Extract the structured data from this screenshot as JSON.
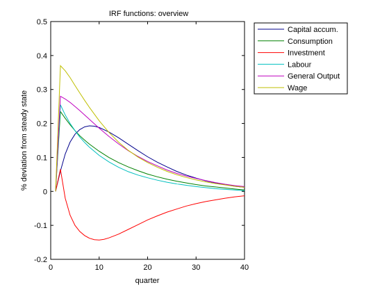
{
  "chart_data": {
    "type": "line",
    "title": "IRF functions: overview",
    "xlabel": "quarter",
    "ylabel": "% deviation from steady state",
    "xlim": [
      0,
      40
    ],
    "ylim": [
      -0.2,
      0.5
    ],
    "xticks": [
      0,
      10,
      20,
      30,
      40
    ],
    "yticks": [
      -0.2,
      -0.1,
      0,
      0.1,
      0.2,
      0.3,
      0.4,
      0.5
    ],
    "ytick_labels": [
      "-0.2",
      "-0.1",
      "0",
      "0.1",
      "0.2",
      "0.3",
      "0.4",
      "0.5"
    ],
    "grid": false,
    "legend_position": "outside-top-right",
    "series": [
      {
        "name": "Capital accum.",
        "color": "#00008b",
        "x": [
          1,
          2,
          3,
          4,
          5,
          6,
          7,
          8,
          9,
          10,
          12,
          14,
          16,
          18,
          20,
          22,
          24,
          26,
          28,
          30,
          32,
          34,
          36,
          38,
          40
        ],
        "y": [
          0,
          0.06,
          0.11,
          0.145,
          0.168,
          0.182,
          0.19,
          0.193,
          0.192,
          0.188,
          0.175,
          0.158,
          0.139,
          0.12,
          0.102,
          0.086,
          0.072,
          0.059,
          0.048,
          0.039,
          0.031,
          0.025,
          0.02,
          0.015,
          0.012
        ]
      },
      {
        "name": "Consumption",
        "color": "#008000",
        "x": [
          1,
          2,
          3,
          4,
          5,
          6,
          7,
          8,
          10,
          12,
          14,
          16,
          18,
          20,
          22,
          24,
          26,
          28,
          30,
          32,
          34,
          36,
          38,
          40
        ],
        "y": [
          0,
          0.235,
          0.215,
          0.196,
          0.179,
          0.164,
          0.151,
          0.139,
          0.118,
          0.1,
          0.085,
          0.072,
          0.061,
          0.051,
          0.043,
          0.036,
          0.03,
          0.025,
          0.02,
          0.016,
          0.013,
          0.01,
          0.007,
          0.004
        ]
      },
      {
        "name": "Investment",
        "color": "#ff0000",
        "x": [
          1,
          2,
          3,
          4,
          5,
          6,
          7,
          8,
          9,
          10,
          11,
          12,
          14,
          16,
          18,
          20,
          22,
          24,
          26,
          28,
          30,
          32,
          34,
          36,
          38,
          40
        ],
        "y": [
          0,
          0.065,
          -0.02,
          -0.07,
          -0.1,
          -0.118,
          -0.13,
          -0.138,
          -0.142,
          -0.143,
          -0.141,
          -0.137,
          -0.126,
          -0.112,
          -0.098,
          -0.084,
          -0.072,
          -0.061,
          -0.052,
          -0.043,
          -0.036,
          -0.03,
          -0.025,
          -0.02,
          -0.016,
          -0.013
        ]
      },
      {
        "name": "Labour",
        "color": "#00bfbf",
        "x": [
          1,
          2,
          3,
          4,
          5,
          6,
          7,
          8,
          10,
          12,
          14,
          16,
          18,
          20,
          22,
          24,
          26,
          28,
          30,
          32,
          34,
          36,
          38,
          40
        ],
        "y": [
          0,
          0.255,
          0.225,
          0.2,
          0.179,
          0.16,
          0.144,
          0.13,
          0.106,
          0.087,
          0.071,
          0.058,
          0.048,
          0.04,
          0.033,
          0.027,
          0.022,
          0.018,
          0.014,
          0.011,
          0.008,
          0.006,
          0.004,
          0.002
        ]
      },
      {
        "name": "General Output",
        "color": "#bf00bf",
        "x": [
          1,
          2,
          3,
          4,
          5,
          6,
          7,
          8,
          10,
          12,
          14,
          16,
          18,
          20,
          22,
          24,
          26,
          28,
          30,
          32,
          34,
          36,
          38,
          40
        ],
        "y": [
          0,
          0.28,
          0.272,
          0.262,
          0.25,
          0.238,
          0.225,
          0.212,
          0.186,
          0.162,
          0.14,
          0.12,
          0.103,
          0.088,
          0.075,
          0.063,
          0.053,
          0.045,
          0.038,
          0.032,
          0.026,
          0.021,
          0.017,
          0.014
        ]
      },
      {
        "name": "Wage",
        "color": "#bfbf00",
        "x": [
          1,
          2,
          3,
          4,
          5,
          6,
          7,
          8,
          10,
          12,
          14,
          16,
          18,
          20,
          22,
          24,
          26,
          28,
          30,
          32,
          34,
          36,
          38,
          40
        ],
        "y": [
          0,
          0.37,
          0.355,
          0.335,
          0.312,
          0.29,
          0.268,
          0.247,
          0.208,
          0.174,
          0.145,
          0.121,
          0.101,
          0.085,
          0.071,
          0.059,
          0.049,
          0.041,
          0.034,
          0.028,
          0.023,
          0.019,
          0.015,
          0.012
        ]
      }
    ]
  }
}
